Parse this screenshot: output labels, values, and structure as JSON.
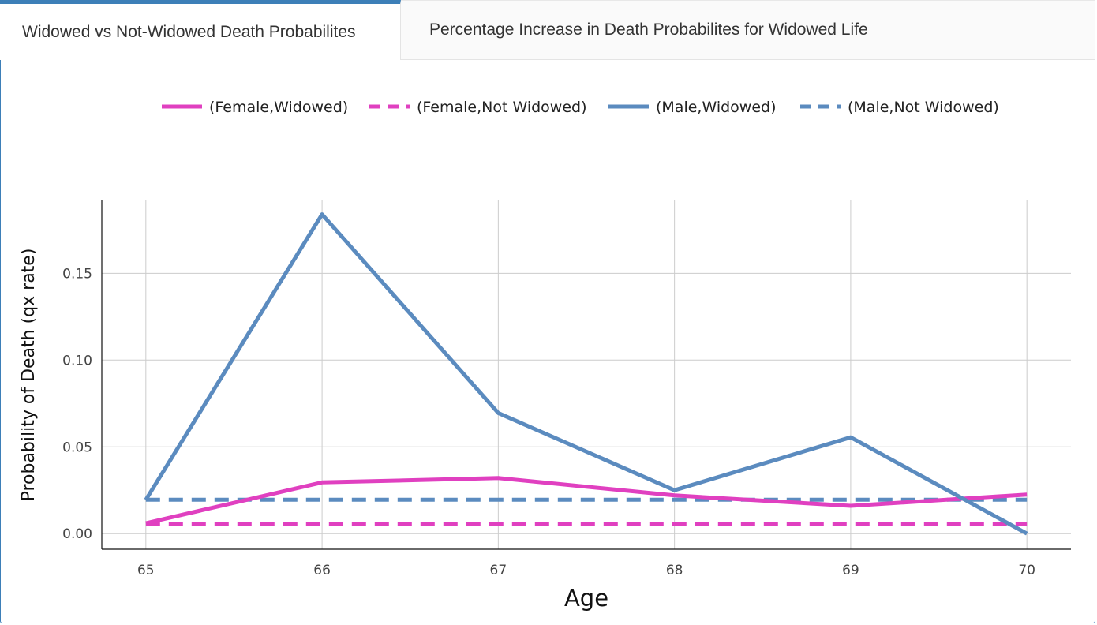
{
  "tabs": [
    {
      "label": "Widowed vs Not-Widowed Death Probabilites",
      "active": true
    },
    {
      "label": "Percentage Increase in Death Probabilites for Widowed Life",
      "active": false
    }
  ],
  "colors": {
    "female": "#e040c0",
    "male": "#5b8bbf",
    "grid": "#cccccc",
    "accent": "#3d7fb8"
  },
  "chart_data": {
    "type": "line",
    "title": "",
    "xlabel": "Age",
    "ylabel": "Probability of Death (qx rate)",
    "x": [
      65,
      66,
      67,
      68,
      69,
      70
    ],
    "xlim": [
      64.75,
      70.25
    ],
    "ylim": [
      -0.009,
      0.192
    ],
    "yticks": [
      0.0,
      0.05,
      0.1,
      0.15
    ],
    "ytick_labels": [
      "0.00",
      "0.05",
      "0.10",
      "0.15"
    ],
    "xtick_labels": [
      "65",
      "66",
      "67",
      "68",
      "69",
      "70"
    ],
    "grid": true,
    "legend_position": "top",
    "series": [
      {
        "name": "(Female,Widowed)",
        "color": "#e040c0",
        "dash": "solid",
        "values": [
          0.006,
          0.0295,
          0.032,
          0.022,
          0.016,
          0.0225
        ]
      },
      {
        "name": "(Female,Not Widowed)",
        "color": "#e040c0",
        "dash": "dashed",
        "values": [
          0.0055,
          0.0055,
          0.0055,
          0.0055,
          0.0055,
          0.0055
        ]
      },
      {
        "name": "(Male,Widowed)",
        "color": "#5b8bbf",
        "dash": "solid",
        "values": [
          0.0195,
          0.184,
          0.0695,
          0.025,
          0.0555,
          0.0
        ]
      },
      {
        "name": "(Male,Not Widowed)",
        "color": "#5b8bbf",
        "dash": "dashed",
        "values": [
          0.0195,
          0.0195,
          0.0195,
          0.0195,
          0.0195,
          0.0195
        ]
      }
    ]
  }
}
